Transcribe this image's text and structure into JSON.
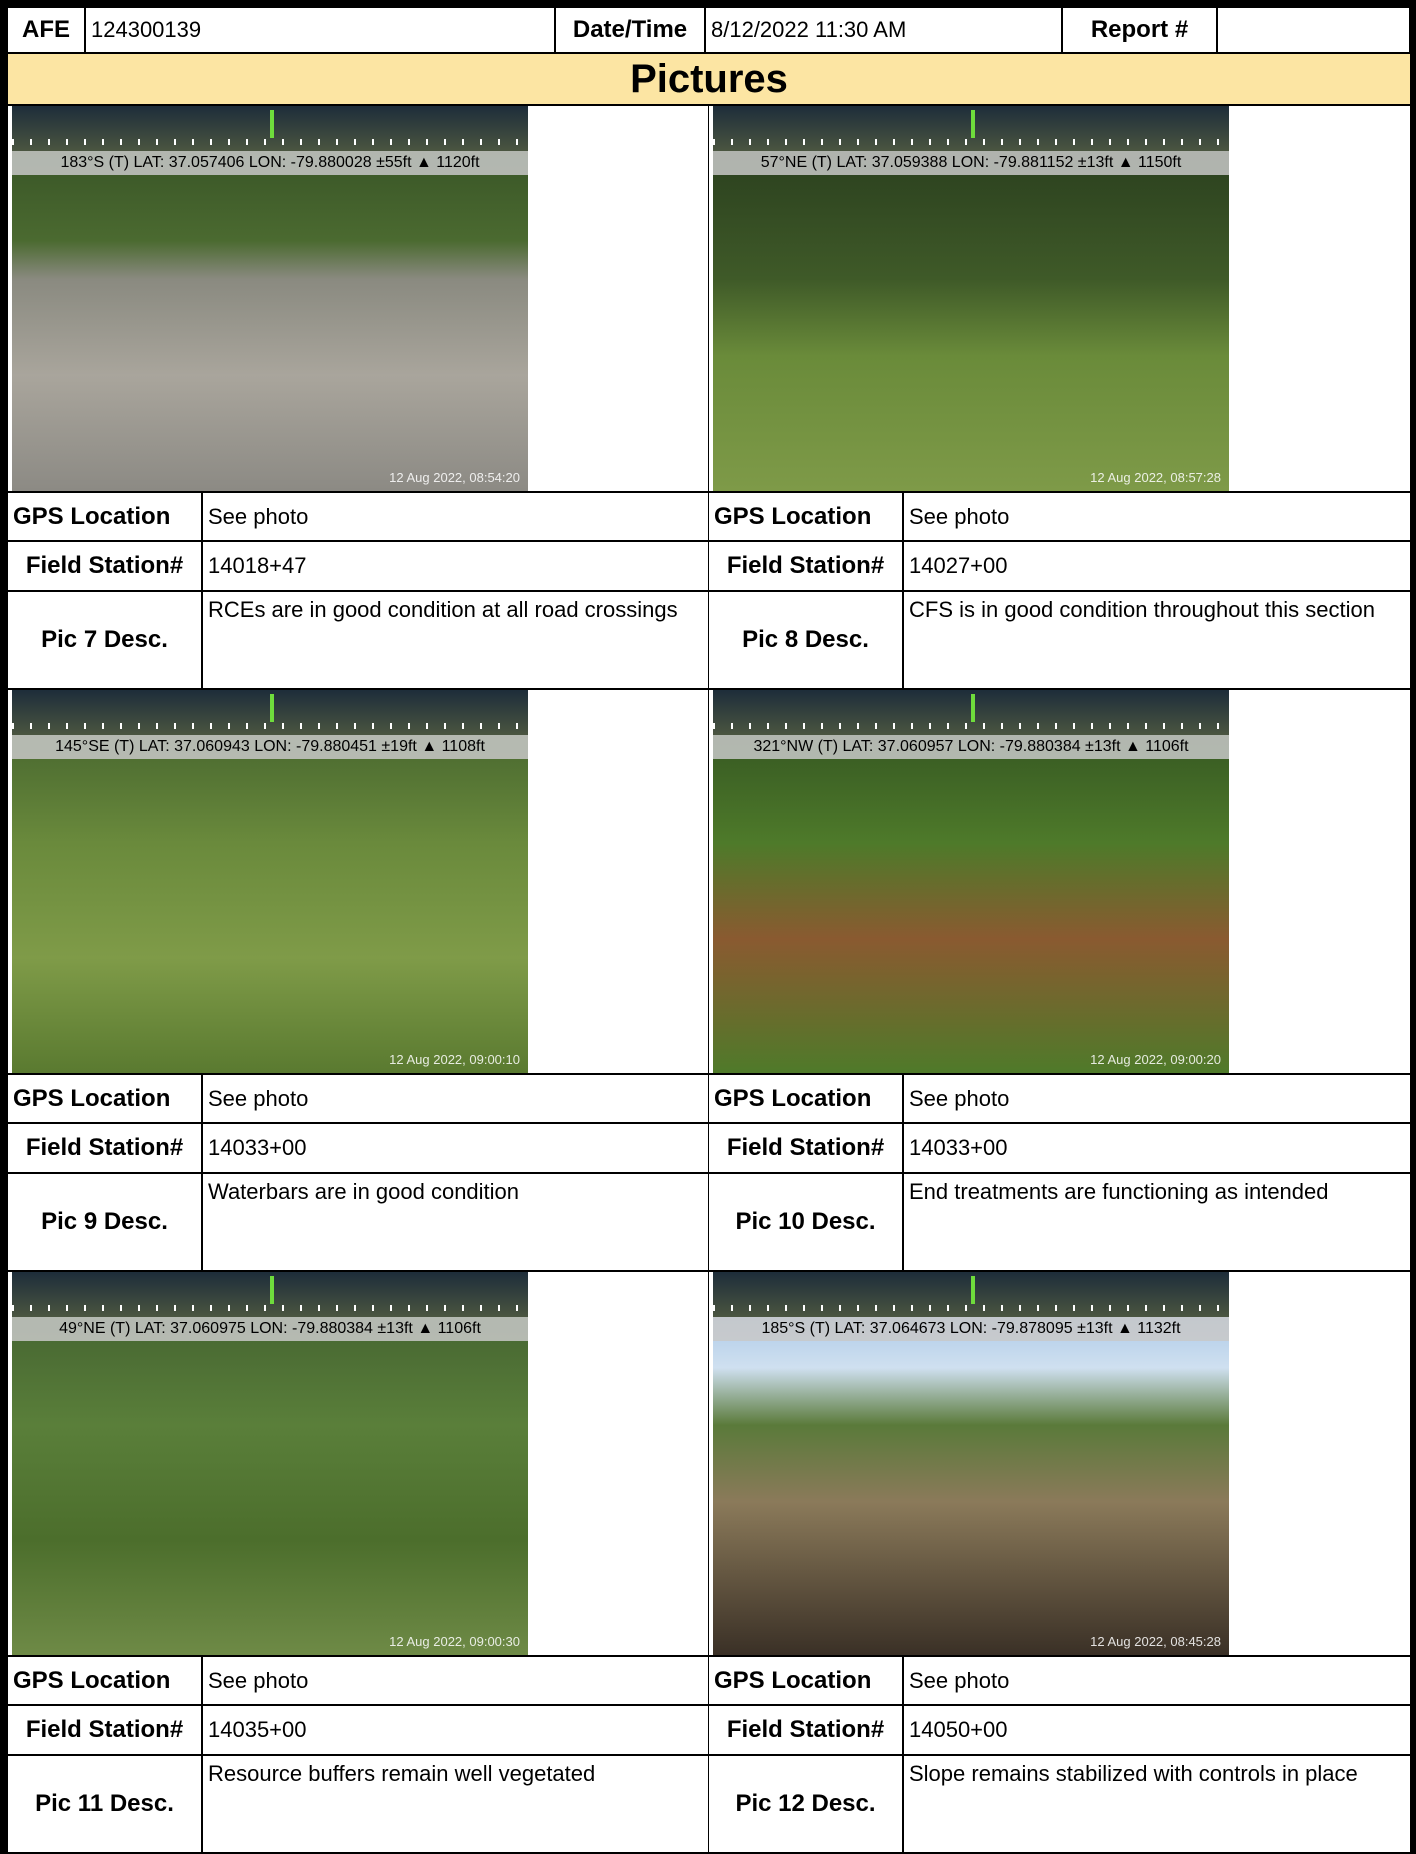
{
  "header": {
    "afe_label": "AFE",
    "afe": "124300139",
    "datetime_label": "Date/Time",
    "datetime": "8/12/2022 11:30 AM",
    "report_label": "Report #"
  },
  "section_title": "Pictures",
  "pictures": [
    {
      "overlay": "183°S (T) LAT: 37.057406 LON: -79.880028 ±55ft ▲ 1120ft",
      "timestamp": "12 Aug 2022, 08:54:20",
      "gps_label": "GPS Location",
      "gps": "See photo",
      "station_label": "Field Station#",
      "station": "14018+47",
      "desc_label": "Pic 7 Desc.",
      "desc": "RCEs are in good condition at all road crossings"
    },
    {
      "overlay": "57°NE (T) LAT: 37.059388 LON: -79.881152 ±13ft ▲ 1150ft",
      "timestamp": "12 Aug 2022, 08:57:28",
      "gps_label": "GPS Location",
      "gps": "See photo",
      "station_label": "Field Station#",
      "station": "14027+00",
      "desc_label": "Pic 8 Desc.",
      "desc": "CFS is in good condition throughout this section"
    },
    {
      "overlay": "145°SE (T) LAT: 37.060943 LON: -79.880451 ±19ft ▲ 1108ft",
      "timestamp": "12 Aug 2022, 09:00:10",
      "gps_label": "GPS Location",
      "gps": "See photo",
      "station_label": "Field Station#",
      "station": "14033+00",
      "desc_label": "Pic 9 Desc.",
      "desc": "Waterbars are in good condition"
    },
    {
      "overlay": "321°NW (T) LAT: 37.060957 LON: -79.880384 ±13ft ▲ 1106ft",
      "timestamp": "12 Aug 2022, 09:00:20",
      "gps_label": "GPS Location",
      "gps": "See photo",
      "station_label": "Field Station#",
      "station": "14033+00",
      "desc_label": "Pic 10 Desc.",
      "desc": "End treatments are functioning as intended"
    },
    {
      "overlay": "49°NE (T) LAT: 37.060975 LON: -79.880384 ±13ft ▲ 1106ft",
      "timestamp": "12 Aug 2022, 09:00:30",
      "gps_label": "GPS Location",
      "gps": "See photo",
      "station_label": "Field Station#",
      "station": "14035+00",
      "desc_label": "Pic 11 Desc.",
      "desc": "Resource buffers remain well vegetated"
    },
    {
      "overlay": "185°S (T) LAT: 37.064673 LON: -79.878095 ±13ft ▲ 1132ft",
      "timestamp": "12 Aug 2022, 08:45:28",
      "gps_label": "GPS Location",
      "gps": "See photo",
      "station_label": "Field Station#",
      "station": "14050+00",
      "desc_label": "Pic 12 Desc.",
      "desc": "Slope remains stabilized with controls in place"
    }
  ]
}
